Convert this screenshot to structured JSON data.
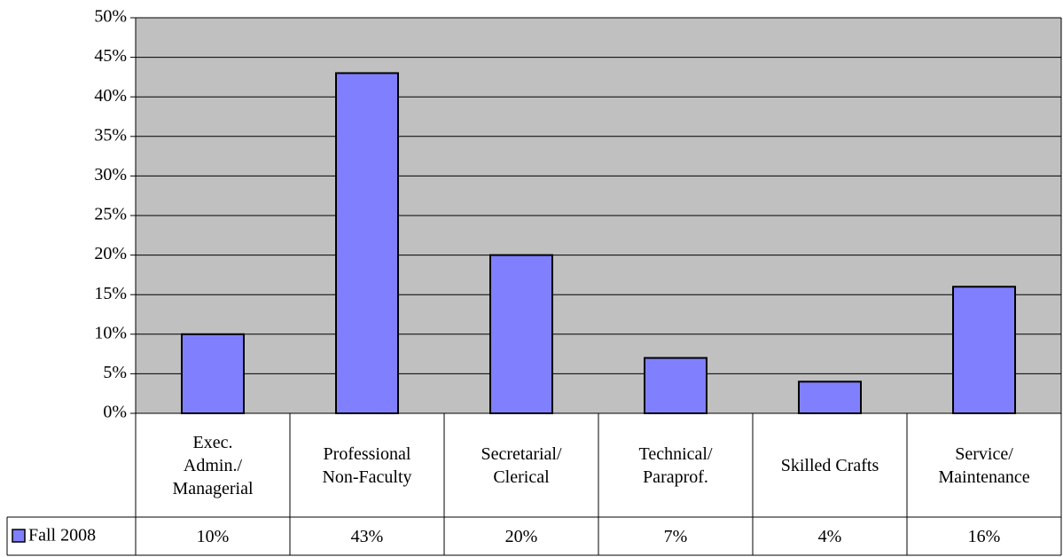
{
  "chart_data": {
    "type": "bar",
    "categories": [
      "Exec.\nAdmin./\nManagerial",
      "Professional\nNon-Faculty",
      "Secretarial/\nClerical",
      "Technical/\nParaprof.",
      "Skilled Crafts",
      "Service/\nMaintenance"
    ],
    "series": [
      {
        "name": "Fall 2008",
        "color": "#8080ff",
        "values": [
          10,
          43,
          20,
          7,
          4,
          16
        ],
        "value_labels": [
          "10%",
          "43%",
          "20%",
          "7%",
          "4%",
          "16%"
        ]
      }
    ],
    "ylim": [
      0,
      50
    ],
    "yticks": [
      {
        "value": 0,
        "label": "0%"
      },
      {
        "value": 5,
        "label": "5%"
      },
      {
        "value": 10,
        "label": "10%"
      },
      {
        "value": 15,
        "label": "15%"
      },
      {
        "value": 20,
        "label": "20%"
      },
      {
        "value": 25,
        "label": "25%"
      },
      {
        "value": 30,
        "label": "30%"
      },
      {
        "value": 35,
        "label": "35%"
      },
      {
        "value": 40,
        "label": "40%"
      },
      {
        "value": 45,
        "label": "45%"
      },
      {
        "value": 50,
        "label": "50%"
      }
    ],
    "grid": true,
    "plot_background": "#c0c0c0"
  }
}
